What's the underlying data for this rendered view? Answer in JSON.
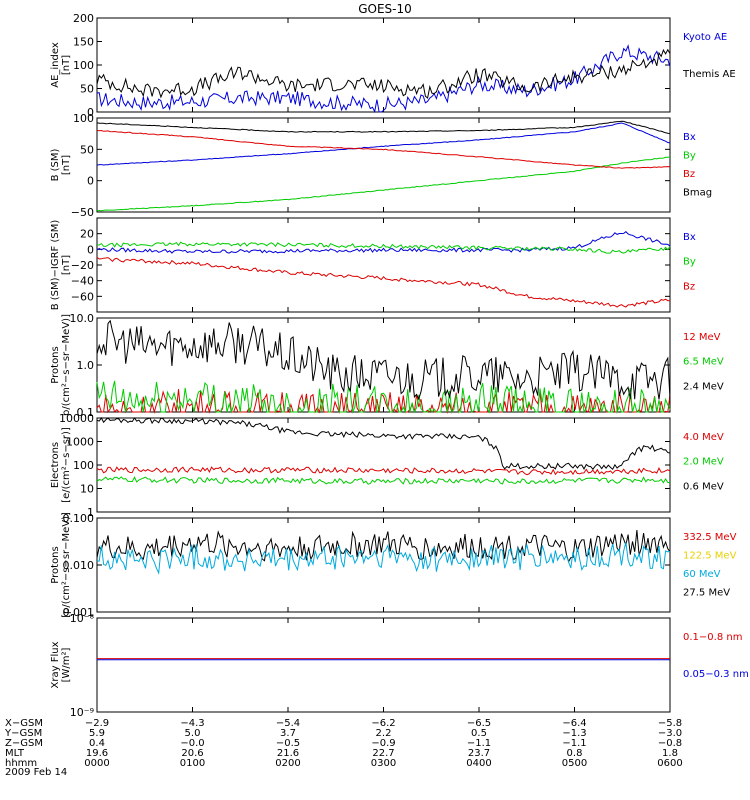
{
  "title": "GOES-10",
  "panels": [
    {
      "id": "ae",
      "ylabel": [
        "AE_index",
        "[nT]"
      ],
      "ticks": [
        "200",
        "150",
        "100",
        "50",
        "0"
      ],
      "tick_values": [
        200,
        150,
        100,
        50,
        0
      ],
      "ylim": [
        0,
        200
      ],
      "scale": "linear",
      "legend": [
        {
          "name": "Kyoto AE",
          "color": "#0000dd"
        },
        {
          "name": "Themis AE",
          "color": "#000000"
        }
      ]
    },
    {
      "id": "b-sm",
      "ylabel": [
        "B (SM)",
        "[nT]"
      ],
      "ticks": [
        "100",
        "50",
        "0",
        "−50"
      ],
      "tick_values": [
        100,
        50,
        0,
        -50
      ],
      "ylim": [
        -50,
        100
      ],
      "scale": "linear",
      "legend": [
        {
          "name": "Bx",
          "color": "#0000dd"
        },
        {
          "name": "By",
          "color": "#00cc00"
        },
        {
          "name": "Bz",
          "color": "#dd0000"
        },
        {
          "name": "Bmag",
          "color": "#000000"
        }
      ]
    },
    {
      "id": "b-sm-igrf",
      "ylabel": [
        "B (SM)−IGRF (SM)",
        "[nT]"
      ],
      "ticks": [
        "20",
        "0",
        "−20",
        "−40",
        "−60"
      ],
      "tick_values": [
        20,
        0,
        -20,
        -40,
        -60
      ],
      "ylim": [
        -80,
        40
      ],
      "scale": "linear",
      "legend": [
        {
          "name": "Bx",
          "color": "#0000dd"
        },
        {
          "name": "By",
          "color": "#00cc00"
        },
        {
          "name": "Bz",
          "color": "#dd0000"
        }
      ]
    },
    {
      "id": "protons-hi",
      "ylabel": [
        "Protons",
        "p/(cm²−s−sr−MeV)]"
      ],
      "ticks": [
        "10.0",
        "1.0",
        "0.1"
      ],
      "tick_values": [
        10,
        1,
        0.1
      ],
      "ylim": [
        0.1,
        10
      ],
      "scale": "log",
      "legend": [
        {
          "name": "12 MeV",
          "color": "#dd0000"
        },
        {
          "name": "6.5 MeV",
          "color": "#00cc00"
        },
        {
          "name": "2.4 MeV",
          "color": "#000000"
        }
      ]
    },
    {
      "id": "electrons",
      "ylabel": [
        "Electrons",
        "[e/(cm²−s−sr)]"
      ],
      "ticks": [
        "10000",
        "1000",
        "100",
        "10",
        "1"
      ],
      "tick_values": [
        10000,
        1000,
        100,
        10,
        1
      ],
      "ylim": [
        1,
        10000
      ],
      "scale": "log",
      "legend": [
        {
          "name": "4.0 MeV",
          "color": "#dd0000"
        },
        {
          "name": "2.0 MeV",
          "color": "#00cc00"
        },
        {
          "name": "0.6 MeV",
          "color": "#000000"
        }
      ]
    },
    {
      "id": "protons-lo",
      "ylabel": [
        "Protons",
        "[p/(cm²−s−sr−MeV)]"
      ],
      "ticks": [
        "0.100",
        "0.010",
        "0.001"
      ],
      "tick_values": [
        0.1,
        0.01,
        0.001
      ],
      "ylim": [
        0.001,
        0.1
      ],
      "scale": "log",
      "legend": [
        {
          "name": "332.5 MeV",
          "color": "#dd0000"
        },
        {
          "name": "122.5 MeV",
          "color": "#e8d000"
        },
        {
          "name": "60 MeV",
          "color": "#00aadd"
        },
        {
          "name": "27.5 MeV",
          "color": "#000000"
        }
      ]
    },
    {
      "id": "xray",
      "ylabel": [
        "Xray  Flux",
        "[W/m²]"
      ],
      "ticks": [
        "10⁻⁸",
        "10⁻⁹"
      ],
      "tick_values": [
        1e-08,
        1e-09
      ],
      "ylim": [
        1e-09,
        1e-08
      ],
      "scale": "log",
      "legend": [
        {
          "name": "0.1−0.8 nm",
          "color": "#dd0000"
        },
        {
          "name": "0.05−0.3 nm",
          "color": "#0000dd"
        }
      ]
    }
  ],
  "ephemeris": {
    "rows": [
      {
        "label": "X−GSM",
        "values": [
          "−2.9",
          "−4.3",
          "−5.4",
          "−6.2",
          "−6.5",
          "−6.4",
          "−5.8"
        ]
      },
      {
        "label": "Y−GSM",
        "values": [
          "5.9",
          "5.0",
          "3.7",
          "2.2",
          "0.5",
          "−1.3",
          "−3.0"
        ]
      },
      {
        "label": "Z−GSM",
        "values": [
          "0.4",
          "−0.0",
          "−0.5",
          "−0.9",
          "−1.1",
          "−1.1",
          "−0.8"
        ]
      },
      {
        "label": "MLT",
        "values": [
          "19.6",
          "20.6",
          "21.6",
          "22.7",
          "23.7",
          "0.8",
          "1.8"
        ]
      },
      {
        "label": "hhmm",
        "values": [
          "0000",
          "0100",
          "0200",
          "0300",
          "0400",
          "0500",
          "0600"
        ]
      }
    ],
    "date": "2009 Feb 14"
  },
  "chart_data": {
    "type": "line",
    "x_label": "hhmm",
    "x_ticks": [
      "0000",
      "0100",
      "0200",
      "0300",
      "0400",
      "0500",
      "0600"
    ],
    "x_range": [
      "0000",
      "0600"
    ],
    "panels": [
      {
        "id": "ae",
        "scale": "linear",
        "x": [
          "0000",
          "0030",
          "0100",
          "0130",
          "0200",
          "0230",
          "0300",
          "0330",
          "0400",
          "0430",
          "0500",
          "0530",
          "0600"
        ],
        "series": [
          {
            "name": "Kyoto AE",
            "color": "#0000dd",
            "values": [
              28,
              20,
              22,
              30,
              30,
              20,
              15,
              25,
              60,
              45,
              70,
              130,
              110
            ]
          },
          {
            "name": "Themis AE",
            "color": "#000000",
            "values": [
              70,
              45,
              50,
              85,
              55,
              60,
              55,
              45,
              80,
              50,
              75,
              90,
              120
            ]
          }
        ]
      },
      {
        "id": "b-sm",
        "scale": "linear",
        "x": [
          "0000",
          "0100",
          "0200",
          "0300",
          "0400",
          "0500",
          "0530",
          "0600"
        ],
        "series": [
          {
            "name": "Bx",
            "color": "#0000dd",
            "values": [
              25,
              33,
              43,
              55,
              65,
              78,
              92,
              60
            ]
          },
          {
            "name": "By",
            "color": "#00cc00",
            "values": [
              -48,
              -40,
              -30,
              -15,
              0,
              15,
              28,
              38
            ]
          },
          {
            "name": "Bz",
            "color": "#dd0000",
            "values": [
              80,
              70,
              55,
              50,
              38,
              25,
              20,
              22
            ]
          },
          {
            "name": "Bmag",
            "color": "#000000",
            "values": [
              92,
              85,
              78,
              78,
              80,
              85,
              95,
              75
            ]
          }
        ]
      },
      {
        "id": "b-sm-igrf",
        "scale": "linear",
        "x": [
          "0000",
          "0100",
          "0200",
          "0300",
          "0400",
          "0430",
          "0500",
          "0530",
          "0600"
        ],
        "series": [
          {
            "name": "Bx",
            "color": "#0000dd",
            "values": [
              0,
              -3,
              -2,
              -1,
              -1,
              -1,
              2,
              22,
              5
            ]
          },
          {
            "name": "By",
            "color": "#00cc00",
            "values": [
              5,
              7,
              6,
              4,
              2,
              1,
              0,
              -4,
              2
            ]
          },
          {
            "name": "Bz",
            "color": "#dd0000",
            "values": [
              -12,
              -18,
              -30,
              -37,
              -45,
              -60,
              -66,
              -72,
              -65
            ]
          }
        ]
      },
      {
        "id": "protons-hi",
        "scale": "log",
        "x": [
          "0000",
          "0030",
          "0100",
          "0130",
          "0200",
          "0230",
          "0300",
          "0330",
          "0400",
          "0430",
          "0500",
          "0530",
          "0600"
        ],
        "series": [
          {
            "name": "12 MeV",
            "color": "#dd0000",
            "values": [
              0.1,
              0.1,
              0.12,
              0.1,
              0.1,
              0.1,
              0.1,
              0.1,
              0.1,
              0.1,
              0.1,
              0.1,
              0.1
            ]
          },
          {
            "name": "6.5 MeV",
            "color": "#00cc00",
            "values": [
              0.2,
              0.15,
              0.2,
              0.15,
              0.12,
              0.15,
              0.12,
              0.12,
              0.15,
              0.12,
              0.12,
              0.12,
              0.12
            ]
          },
          {
            "name": "2.4 MeV",
            "color": "#000000",
            "values": [
              3.5,
              2.5,
              2.8,
              3.0,
              1.5,
              0.6,
              0.6,
              0.5,
              0.6,
              0.5,
              0.7,
              0.5,
              0.5
            ]
          }
        ]
      },
      {
        "id": "electrons",
        "scale": "log",
        "x": [
          "0000",
          "0100",
          "0130",
          "0200",
          "0230",
          "0300",
          "0400",
          "0415",
          "0430",
          "0500",
          "0530",
          "0545",
          "0600"
        ],
        "series": [
          {
            "name": "4.0 MeV",
            "color": "#dd0000",
            "values": [
              60,
              65,
              60,
              62,
              60,
              58,
              55,
              50,
              50,
              52,
              55,
              60,
              55
            ]
          },
          {
            "name": "2.0 MeV",
            "color": "#00cc00",
            "values": [
              25,
              22,
              22,
              22,
              20,
              20,
              22,
              20,
              20,
              22,
              22,
              25,
              22
            ]
          },
          {
            "name": "0.6 MeV",
            "color": "#000000",
            "values": [
              8500,
              7500,
              6000,
              2500,
              2000,
              1800,
              1500,
              90,
              90,
              90,
              80,
              600,
              300
            ]
          }
        ]
      },
      {
        "id": "protons-lo",
        "scale": "log",
        "x": [
          "0000",
          "0030",
          "0100",
          "0130",
          "0200",
          "0230",
          "0300",
          "0330",
          "0400",
          "0430",
          "0500",
          "0530",
          "0600"
        ],
        "series": [
          {
            "name": "27.5 MeV",
            "color": "#000000",
            "values": [
              0.025,
              0.02,
              0.03,
              0.025,
              0.022,
              0.025,
              0.028,
              0.022,
              0.025,
              0.025,
              0.02,
              0.03,
              0.03
            ]
          },
          {
            "name": "60 MeV",
            "color": "#00aadd",
            "values": [
              0.015,
              0.012,
              0.015,
              0.013,
              0.012,
              0.014,
              0.015,
              0.013,
              0.014,
              0.015,
              0.013,
              0.016,
              0.015
            ]
          }
        ]
      },
      {
        "id": "xray",
        "scale": "log",
        "x": [
          "0000",
          "0600"
        ],
        "series": [
          {
            "name": "0.1−0.8 nm",
            "color": "#dd0000",
            "values": [
              3.7e-09,
              3.7e-09
            ]
          },
          {
            "name": "0.05−0.3 nm",
            "color": "#0000dd",
            "values": [
              3.6e-09,
              3.6e-09
            ]
          }
        ]
      }
    ]
  }
}
